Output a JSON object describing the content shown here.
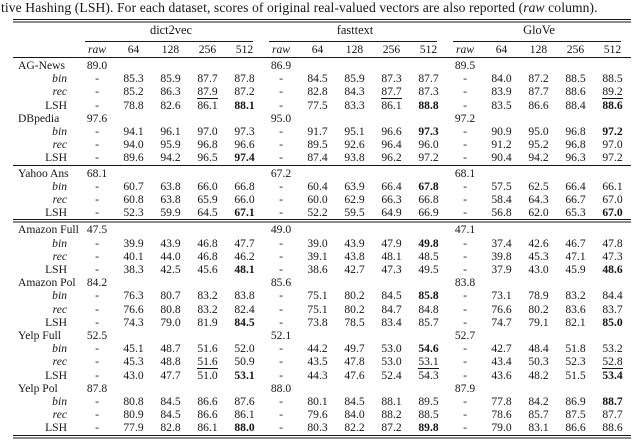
{
  "caption": {
    "text_start": "tive Hashing (LSH). For each dataset, scores of original real-valued vectors are also reported (",
    "raw_word": "raw",
    "text_end": " column)."
  },
  "table": {
    "dash": "-",
    "groups": [
      "dict2vec",
      "fasttext",
      "GloVe"
    ],
    "subcolumns": [
      "raw",
      "64",
      "128",
      "256",
      "512"
    ],
    "datasets": [
      {
        "name": "AG-News",
        "raw": [
          "89.0",
          "86.9",
          "89.5"
        ],
        "methods": [
          {
            "label": "bin",
            "italic": true,
            "values": [
              [
                "85.3",
                "85.9",
                "87.7",
                "87.8"
              ],
              [
                "84.5",
                "85.9",
                "87.3",
                "87.7"
              ],
              [
                "84.0",
                "87.2",
                "88.5",
                "88.5"
              ]
            ]
          },
          {
            "label": "rec",
            "italic": true,
            "values": [
              [
                "85.2",
                "86.3",
                "__87.9__",
                "87.2"
              ],
              [
                "82.8",
                "84.3",
                "__87.7__",
                "87.3"
              ],
              [
                "83.9",
                "87.7",
                "88.6",
                "__89.2__"
              ]
            ]
          },
          {
            "label": "LSH",
            "italic": false,
            "values": [
              [
                "78.8",
                "82.6",
                "86.1",
                "**88.1**"
              ],
              [
                "77.5",
                "83.3",
                "86.1",
                "**88.8**"
              ],
              [
                "83.5",
                "86.6",
                "88.4",
                "**88.6**"
              ]
            ]
          }
        ],
        "rule_after": ""
      },
      {
        "name": "DBpedia",
        "raw": [
          "97.6",
          "95.0",
          "97.2"
        ],
        "methods": [
          {
            "label": "bin",
            "italic": true,
            "values": [
              [
                "94.1",
                "96.1",
                "97.0",
                "97.3"
              ],
              [
                "91.7",
                "95.1",
                "96.6",
                "**97.3**"
              ],
              [
                "90.9",
                "95.0",
                "96.8",
                "**97.2**"
              ]
            ]
          },
          {
            "label": "rec",
            "italic": true,
            "values": [
              [
                "94.0",
                "95.9",
                "__96.8__",
                "96.6"
              ],
              [
                "89.5",
                "92.6",
                "__96.4__",
                "96.0"
              ],
              [
                "91.2",
                "95.2",
                "96.8",
                "__97.0__"
              ]
            ]
          },
          {
            "label": "LSH",
            "italic": false,
            "values": [
              [
                "89.6",
                "94.2",
                "96.5",
                "**97.4**"
              ],
              [
                "87.4",
                "93.8",
                "96.2",
                "97.2"
              ],
              [
                "90.4",
                "94.2",
                "96.3",
                "97.2"
              ]
            ]
          }
        ],
        "rule_after": "single"
      },
      {
        "name": "Yahoo Ans",
        "raw": [
          "68.1",
          "67.2",
          "68.1"
        ],
        "methods": [
          {
            "label": "bin",
            "italic": true,
            "values": [
              [
                "60.7",
                "63.8",
                "66.0",
                "66.8"
              ],
              [
                "60.4",
                "63.9",
                "66.4",
                "**67.8**"
              ],
              [
                "57.5",
                "62.5",
                "66.4",
                "66.1"
              ]
            ]
          },
          {
            "label": "rec",
            "italic": true,
            "values": [
              [
                "60.8",
                "63.8",
                "65.9",
                "__66.0__"
              ],
              [
                "60.0",
                "62.9",
                "66.3",
                "__66.8__"
              ],
              [
                "58.4",
                "64.3",
                "66.7",
                "__67.0__"
              ]
            ]
          },
          {
            "label": "LSH",
            "italic": false,
            "values": [
              [
                "52.3",
                "59.9",
                "64.5",
                "**67.1**"
              ],
              [
                "52.2",
                "59.5",
                "64.9",
                "66.9"
              ],
              [
                "56.8",
                "62.0",
                "65.3",
                "**67.0**"
              ]
            ]
          }
        ],
        "rule_after": "double"
      },
      {
        "name": "Amazon Full",
        "raw": [
          "47.5",
          "49.0",
          "47.1"
        ],
        "methods": [
          {
            "label": "bin",
            "italic": true,
            "values": [
              [
                "39.9",
                "43.9",
                "46.8",
                "47.7"
              ],
              [
                "39.0",
                "43.9",
                "47.9",
                "**49.8**"
              ],
              [
                "37.4",
                "42.6",
                "46.7",
                "47.8"
              ]
            ]
          },
          {
            "label": "rec",
            "italic": true,
            "values": [
              [
                "40.1",
                "44.0",
                "__46.8__",
                "46.2"
              ],
              [
                "39.1",
                "43.8",
                "48.1",
                "__48.5__"
              ],
              [
                "39.8",
                "45.3",
                "47.1",
                "__47.3__"
              ]
            ]
          },
          {
            "label": "LSH",
            "italic": false,
            "values": [
              [
                "38.3",
                "42.5",
                "45.6",
                "**48.1**"
              ],
              [
                "38.6",
                "42.7",
                "47.3",
                "49.5"
              ],
              [
                "37.9",
                "43.0",
                "45.9",
                "**48.6**"
              ]
            ]
          }
        ],
        "rule_after": ""
      },
      {
        "name": "Amazon Pol",
        "raw": [
          "84.2",
          "85.6",
          "83.8"
        ],
        "methods": [
          {
            "label": "bin",
            "italic": true,
            "values": [
              [
                "76.3",
                "80.7",
                "83.2",
                "83.8"
              ],
              [
                "75.1",
                "80.2",
                "84.5",
                "**85.8**"
              ],
              [
                "73.1",
                "78.9",
                "83.2",
                "84.4"
              ]
            ]
          },
          {
            "label": "rec",
            "italic": true,
            "values": [
              [
                "76.6",
                "80.8",
                "__83.2__",
                "82.4"
              ],
              [
                "75.1",
                "80.2",
                "84.7",
                "__84.8__"
              ],
              [
                "76.6",
                "80.2",
                "83.6",
                "__83.7__"
              ]
            ]
          },
          {
            "label": "LSH",
            "italic": false,
            "values": [
              [
                "74.3",
                "79.0",
                "81.9",
                "**84.5**"
              ],
              [
                "73.8",
                "78.5",
                "83.4",
                "85.7"
              ],
              [
                "74.7",
                "79.1",
                "82.1",
                "**85.0**"
              ]
            ]
          }
        ],
        "rule_after": ""
      },
      {
        "name": "Yelp Full",
        "raw": [
          "52.5",
          "52.1",
          "52.7"
        ],
        "methods": [
          {
            "label": "bin",
            "italic": true,
            "values": [
              [
                "45.1",
                "48.7",
                "51.6",
                "52.0"
              ],
              [
                "44.2",
                "49.7",
                "53.0",
                "**54.6**"
              ],
              [
                "42.7",
                "48.4",
                "51.8",
                "53.2"
              ]
            ]
          },
          {
            "label": "rec",
            "italic": true,
            "values": [
              [
                "45.3",
                "48.8",
                "__51.6__",
                "50.9"
              ],
              [
                "43.5",
                "47.8",
                "53.0",
                "__53.1__"
              ],
              [
                "43.4",
                "50.3",
                "52.3",
                "__52.8__"
              ]
            ]
          },
          {
            "label": "LSH",
            "italic": false,
            "values": [
              [
                "43.0",
                "47.7",
                "51.0",
                "**53.1**"
              ],
              [
                "44.3",
                "47.6",
                "52.4",
                "54.3"
              ],
              [
                "43.6",
                "48.2",
                "51.5",
                "**53.4**"
              ]
            ]
          }
        ],
        "rule_after": ""
      },
      {
        "name": "Yelp Pol",
        "raw": [
          "87.8",
          "88.0",
          "87.9"
        ],
        "methods": [
          {
            "label": "bin",
            "italic": true,
            "values": [
              [
                "80.8",
                "84.5",
                "86.6",
                "87.6"
              ],
              [
                "80.1",
                "84.5",
                "88.1",
                "89.5"
              ],
              [
                "77.8",
                "84.2",
                "86.9",
                "**88.7**"
              ]
            ]
          },
          {
            "label": "rec",
            "italic": true,
            "values": [
              [
                "80.9",
                "84.5",
                "__86.6__",
                "86.1"
              ],
              [
                "79.6",
                "84.0",
                "88.2",
                "__88.5__"
              ],
              [
                "78.6",
                "85.7",
                "87.5",
                "__87.7__"
              ]
            ]
          },
          {
            "label": "LSH",
            "italic": false,
            "values": [
              [
                "77.9",
                "82.8",
                "86.1",
                "**88.0**"
              ],
              [
                "80.3",
                "82.2",
                "87.2",
                "**89.8**"
              ],
              [
                "79.0",
                "83.1",
                "86.6",
                "88.6"
              ]
            ]
          }
        ],
        "rule_after": ""
      }
    ]
  }
}
